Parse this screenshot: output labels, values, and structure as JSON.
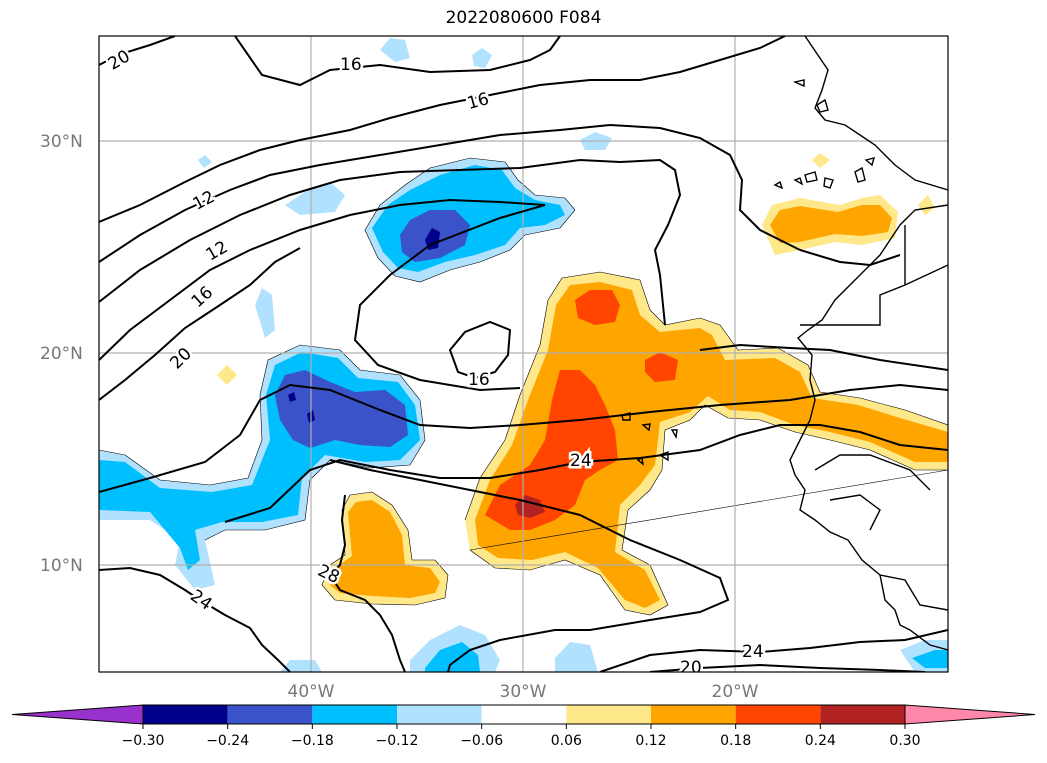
{
  "title": "2022080600 F084",
  "map": {
    "lat_labels": [
      {
        "id": "30n",
        "text": "30°N"
      },
      {
        "id": "20n",
        "text": "20°N"
      },
      {
        "id": "10n",
        "text": "10°N"
      }
    ],
    "lon_labels": [
      {
        "id": "40w",
        "text": "40°W"
      },
      {
        "id": "30w",
        "text": "30°W"
      },
      {
        "id": "20w",
        "text": "20°W"
      }
    ],
    "contour_labels": [
      {
        "id": "c20-nw",
        "text": "20"
      },
      {
        "id": "c16-top",
        "text": "16"
      },
      {
        "id": "c16-mid",
        "text": "16"
      },
      {
        "id": "c12-a",
        "text": "12"
      },
      {
        "id": "c12-b",
        "text": "12"
      },
      {
        "id": "c16-west",
        "text": "16"
      },
      {
        "id": "c20-west",
        "text": "20"
      },
      {
        "id": "c16-closed",
        "text": "16"
      },
      {
        "id": "c24-center",
        "text": "24"
      },
      {
        "id": "c28-south",
        "text": "28"
      },
      {
        "id": "c24-sw",
        "text": "24"
      },
      {
        "id": "c24-se",
        "text": "24"
      },
      {
        "id": "c20-se",
        "text": "20"
      }
    ]
  },
  "colorbar": {
    "ticks": [
      "−0.30",
      "−0.24",
      "−0.18",
      "−0.12",
      "−0.06",
      "0.06",
      "0.12",
      "0.18",
      "0.24",
      "0.30"
    ],
    "colors": [
      "#9932cc",
      "#00008b",
      "#3a53c8",
      "#00bfff",
      "#b0e2ff",
      "#ffffff",
      "#ffe88a",
      "#ffa500",
      "#ff4500",
      "#b22222",
      "#ff88aa"
    ]
  },
  "colors": {
    "neg_strong": "#00008b",
    "neg_mid": "#3a53c8",
    "neg": "#00bfff",
    "neg_light": "#b0e2ff",
    "pos_light": "#ffe88a",
    "pos": "#ffa500",
    "pos_mid": "#ff4500",
    "pos_strong": "#b22222",
    "gridline": "#b0b0b0"
  }
}
